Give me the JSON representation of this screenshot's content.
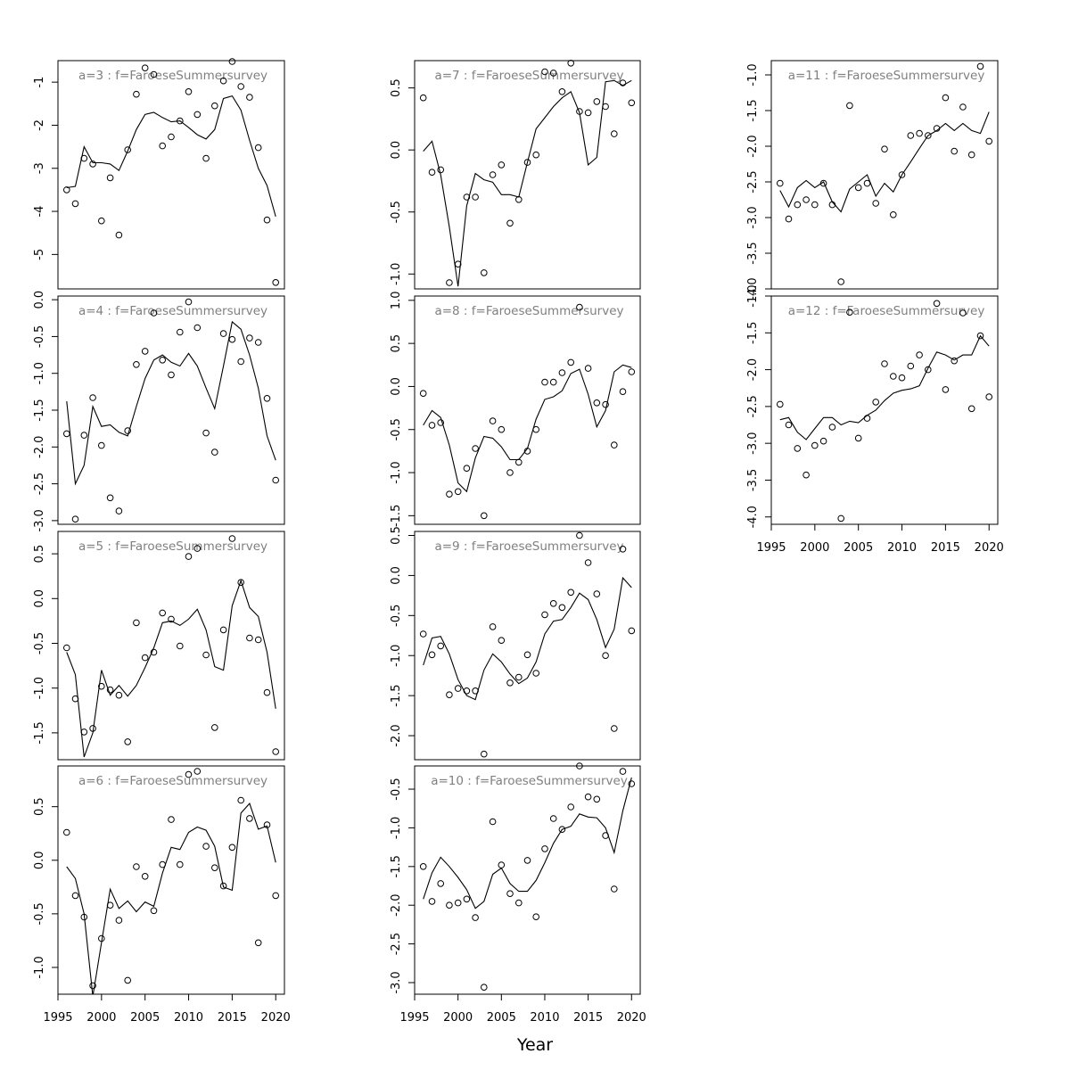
{
  "figure": {
    "xlabel": "Year",
    "point_color": "#000000",
    "line_color": "#000000",
    "title_color": "#808080"
  },
  "chart_data": [
    {
      "type": "scatter",
      "title": "a=3  :  f=FaroeseSummersurvey",
      "xlim": [
        1995,
        2021
      ],
      "ylim": [
        -5.8,
        -0.5
      ],
      "yticks": [
        -5,
        -4,
        -3,
        -2,
        -1
      ],
      "xticks": [
        1995,
        2000,
        2005,
        2010,
        2015,
        2020
      ],
      "x": [
        1996,
        1997,
        1998,
        1999,
        2000,
        2001,
        2002,
        2003,
        2004,
        2005,
        2006,
        2007,
        2008,
        2009,
        2010,
        2011,
        2012,
        2013,
        2014,
        2015,
        2016,
        2017,
        2018,
        2019,
        2020
      ],
      "observed": [
        -3.5,
        -3.82,
        -2.77,
        -2.9,
        -4.22,
        -3.22,
        -4.55,
        -2.57,
        -1.28,
        -0.67,
        -0.82,
        -2.48,
        -2.27,
        -1.9,
        -1.22,
        -1.75,
        -2.77,
        -1.55,
        -0.97,
        -0.52,
        -1.1,
        -1.35,
        -2.52,
        -4.2,
        -5.65
      ],
      "fitted": [
        -3.45,
        -3.42,
        -2.5,
        -2.87,
        -2.87,
        -2.9,
        -3.05,
        -2.6,
        -2.1,
        -1.75,
        -1.7,
        -1.82,
        -1.92,
        -1.9,
        -2.05,
        -2.22,
        -2.32,
        -2.1,
        -1.38,
        -1.32,
        -1.65,
        -2.35,
        -3.0,
        -3.4,
        -4.12
      ]
    },
    {
      "type": "scatter",
      "title": "a=4  :  f=FaroeseSummersurvey",
      "xlim": [
        1995,
        2021
      ],
      "ylim": [
        -3.05,
        0.05
      ],
      "yticks": [
        -3.0,
        -2.5,
        -2.0,
        -1.5,
        -1.0,
        -0.5,
        0.0
      ],
      "xticks": [
        1995,
        2000,
        2005,
        2010,
        2015,
        2020
      ],
      "x": [
        1996,
        1997,
        1998,
        1999,
        2000,
        2001,
        2002,
        2003,
        2004,
        2005,
        2006,
        2007,
        2008,
        2009,
        2010,
        2011,
        2012,
        2013,
        2014,
        2015,
        2016,
        2017,
        2018,
        2019,
        2020
      ],
      "observed": [
        -1.82,
        -2.98,
        -1.84,
        -1.33,
        -1.98,
        -2.69,
        -2.87,
        -1.78,
        -0.88,
        -0.7,
        -0.18,
        -0.82,
        -1.02,
        -0.44,
        -0.03,
        -0.38,
        -1.81,
        -2.07,
        -0.46,
        -0.54,
        -0.84,
        -0.52,
        -0.58,
        -1.34,
        -2.45
      ],
      "fitted": [
        -1.38,
        -2.5,
        -2.25,
        -1.45,
        -1.72,
        -1.7,
        -1.8,
        -1.85,
        -1.45,
        -1.07,
        -0.82,
        -0.75,
        -0.85,
        -0.9,
        -0.73,
        -0.9,
        -1.2,
        -1.48,
        -0.9,
        -0.3,
        -0.4,
        -0.75,
        -1.2,
        -1.85,
        -2.18
      ]
    },
    {
      "type": "scatter",
      "title": "a=5  :  f=FaroeseSummersurvey",
      "xlim": [
        1995,
        2021
      ],
      "ylim": [
        -1.8,
        0.75
      ],
      "yticks": [
        -1.5,
        -1.0,
        -0.5,
        0.0,
        0.5
      ],
      "xticks": [
        1995,
        2000,
        2005,
        2010,
        2015,
        2020
      ],
      "x": [
        1996,
        1997,
        1998,
        1999,
        2000,
        2001,
        2002,
        2003,
        2004,
        2005,
        2006,
        2007,
        2008,
        2009,
        2010,
        2011,
        2012,
        2013,
        2014,
        2015,
        2016,
        2017,
        2018,
        2019,
        2020
      ],
      "observed": [
        -0.55,
        -1.12,
        -1.49,
        -1.45,
        -0.98,
        -1.02,
        -1.08,
        -1.6,
        -0.27,
        -0.66,
        -0.6,
        -0.16,
        -0.23,
        -0.53,
        0.47,
        0.56,
        -0.63,
        -1.44,
        -0.35,
        0.67,
        0.18,
        -0.44,
        -0.46,
        -1.05,
        -1.71
      ],
      "fitted": [
        -0.6,
        -0.85,
        -1.77,
        -1.5,
        -0.8,
        -1.08,
        -0.97,
        -1.09,
        -0.97,
        -0.77,
        -0.55,
        -0.27,
        -0.25,
        -0.3,
        -0.23,
        -0.12,
        -0.35,
        -0.76,
        -0.8,
        -0.08,
        0.2,
        -0.1,
        -0.2,
        -0.6,
        -1.23
      ]
    },
    {
      "type": "scatter",
      "title": "a=6  :  f=FaroeseSummersurvey",
      "xlim": [
        1995,
        2021
      ],
      "ylim": [
        -1.25,
        0.88
      ],
      "yticks": [
        -1.0,
        -0.5,
        0.0,
        0.5
      ],
      "xticks": [
        1995,
        2000,
        2005,
        2010,
        2015,
        2020
      ],
      "x": [
        1996,
        1997,
        1998,
        1999,
        2000,
        2001,
        2002,
        2003,
        2004,
        2005,
        2006,
        2007,
        2008,
        2009,
        2010,
        2011,
        2012,
        2013,
        2014,
        2015,
        2016,
        2017,
        2018,
        2019,
        2020
      ],
      "observed": [
        0.26,
        -0.33,
        -0.53,
        -1.17,
        -0.73,
        -0.42,
        -0.56,
        -1.12,
        -0.06,
        -0.15,
        -0.47,
        -0.04,
        0.38,
        -0.04,
        0.8,
        0.83,
        0.13,
        -0.07,
        -0.24,
        0.12,
        0.56,
        0.39,
        -0.77,
        0.33,
        -0.33
      ],
      "fitted": [
        -0.06,
        -0.17,
        -0.5,
        -1.27,
        -0.77,
        -0.27,
        -0.45,
        -0.38,
        -0.48,
        -0.39,
        -0.43,
        -0.12,
        0.12,
        0.1,
        0.26,
        0.31,
        0.28,
        0.13,
        -0.25,
        -0.28,
        0.44,
        0.53,
        0.29,
        0.32,
        -0.02
      ]
    },
    {
      "type": "scatter",
      "title": "a=7  :  f=FaroeseSummersurvey",
      "xlim": [
        1995,
        2021
      ],
      "ylim": [
        -1.12,
        0.72
      ],
      "yticks": [
        -1.0,
        -0.5,
        0.0,
        0.5
      ],
      "xticks": [
        1995,
        2000,
        2005,
        2010,
        2015,
        2020
      ],
      "x": [
        1996,
        1997,
        1998,
        1999,
        2000,
        2001,
        2002,
        2003,
        2004,
        2005,
        2006,
        2007,
        2008,
        2009,
        2010,
        2011,
        2012,
        2013,
        2014,
        2015,
        2016,
        2017,
        2018,
        2019,
        2020
      ],
      "observed": [
        0.42,
        -0.18,
        -0.16,
        -1.07,
        -0.92,
        -0.38,
        -0.38,
        -0.99,
        -0.2,
        -0.12,
        -0.59,
        -0.4,
        -0.1,
        -0.04,
        0.63,
        0.62,
        0.47,
        0.7,
        0.31,
        0.3,
        0.39,
        0.35,
        0.13,
        0.54,
        0.38
      ],
      "fitted": [
        -0.01,
        0.07,
        -0.2,
        -0.62,
        -1.1,
        -0.45,
        -0.19,
        -0.24,
        -0.26,
        -0.36,
        -0.36,
        -0.38,
        -0.1,
        0.17,
        0.26,
        0.35,
        0.42,
        0.47,
        0.3,
        -0.12,
        -0.06,
        0.55,
        0.56,
        0.52,
        0.56
      ]
    },
    {
      "type": "scatter",
      "title": "a=8  :  f=FaroeseSummersurvey",
      "xlim": [
        1995,
        2021
      ],
      "ylim": [
        -1.6,
        1.05
      ],
      "yticks": [
        -1.5,
        -1.0,
        -0.5,
        0.0,
        0.5,
        1.0
      ],
      "xticks": [
        1995,
        2000,
        2005,
        2010,
        2015,
        2020
      ],
      "x": [
        1996,
        1997,
        1998,
        1999,
        2000,
        2001,
        2002,
        2003,
        2004,
        2005,
        2006,
        2007,
        2008,
        2009,
        2010,
        2011,
        2012,
        2013,
        2014,
        2015,
        2016,
        2017,
        2018,
        2019,
        2020
      ],
      "observed": [
        -0.08,
        -0.45,
        -0.42,
        -1.25,
        -1.22,
        -0.95,
        -0.72,
        -1.5,
        -0.4,
        -0.5,
        -1.0,
        -0.88,
        -0.75,
        -0.5,
        0.05,
        0.05,
        0.16,
        0.28,
        0.92,
        0.21,
        -0.19,
        -0.21,
        -0.68,
        -0.06,
        0.17
      ],
      "fitted": [
        -0.45,
        -0.28,
        -0.36,
        -0.68,
        -1.12,
        -1.22,
        -0.83,
        -0.58,
        -0.6,
        -0.7,
        -0.85,
        -0.85,
        -0.72,
        -0.38,
        -0.15,
        -0.12,
        -0.05,
        0.15,
        0.2,
        -0.09,
        -0.47,
        -0.28,
        0.17,
        0.25,
        0.22
      ]
    },
    {
      "type": "scatter",
      "title": "a=9  :  f=FaroeseSummersurvey",
      "xlim": [
        1995,
        2021
      ],
      "ylim": [
        -2.3,
        0.55
      ],
      "yticks": [
        -2.0,
        -1.5,
        -1.0,
        -0.5,
        0.0,
        0.5
      ],
      "xticks": [
        1995,
        2000,
        2005,
        2010,
        2015,
        2020
      ],
      "x": [
        1996,
        1997,
        1998,
        1999,
        2000,
        2001,
        2002,
        2003,
        2004,
        2005,
        2006,
        2007,
        2008,
        2009,
        2010,
        2011,
        2012,
        2013,
        2014,
        2015,
        2016,
        2017,
        2018,
        2019,
        2020
      ],
      "observed": [
        -0.73,
        -0.99,
        -0.88,
        -1.49,
        -1.41,
        -1.44,
        -1.44,
        -2.23,
        -0.64,
        -0.81,
        -1.34,
        -1.27,
        -0.99,
        -1.22,
        -0.49,
        -0.35,
        -0.4,
        -0.21,
        0.5,
        0.16,
        -0.23,
        -1.0,
        -1.91,
        0.33,
        -0.69
      ],
      "fitted": [
        -1.12,
        -0.78,
        -0.76,
        -0.98,
        -1.3,
        -1.5,
        -1.55,
        -1.18,
        -0.98,
        -1.08,
        -1.23,
        -1.35,
        -1.28,
        -1.08,
        -0.73,
        -0.57,
        -0.55,
        -0.4,
        -0.22,
        -0.3,
        -0.55,
        -0.9,
        -0.67,
        -0.03,
        -0.15
      ]
    },
    {
      "type": "scatter",
      "title": "a=10  :  f=FaroeseSummersurvey",
      "xlim": [
        1995,
        2021
      ],
      "ylim": [
        -3.15,
        -0.2
      ],
      "yticks": [
        -3.0,
        -2.5,
        -2.0,
        -1.5,
        -1.0,
        -0.5
      ],
      "xticks": [
        1995,
        2000,
        2005,
        2010,
        2015,
        2020
      ],
      "x": [
        1996,
        1997,
        1998,
        1999,
        2000,
        2001,
        2002,
        2003,
        2004,
        2005,
        2006,
        2007,
        2008,
        2009,
        2010,
        2011,
        2012,
        2013,
        2014,
        2015,
        2016,
        2017,
        2018,
        2019,
        2020
      ],
      "observed": [
        -1.5,
        -1.95,
        -1.72,
        -2.0,
        -1.97,
        -1.92,
        -2.16,
        -3.06,
        -0.92,
        -1.48,
        -1.85,
        -1.97,
        -1.42,
        -2.15,
        -1.27,
        -0.88,
        -1.02,
        -0.73,
        -0.2,
        -0.6,
        -0.63,
        -1.1,
        -1.79,
        -0.27,
        -0.43
      ],
      "fitted": [
        -1.92,
        -1.58,
        -1.38,
        -1.5,
        -1.64,
        -1.8,
        -2.04,
        -1.95,
        -1.6,
        -1.52,
        -1.72,
        -1.82,
        -1.82,
        -1.68,
        -1.45,
        -1.2,
        -1.02,
        -0.98,
        -0.82,
        -0.86,
        -0.87,
        -1.0,
        -1.32,
        -0.78,
        -0.35
      ]
    },
    {
      "type": "scatter",
      "title": "a=11  :  f=FaroeseSummersurvey",
      "xlim": [
        1995,
        2021
      ],
      "ylim": [
        -4.0,
        -0.8
      ],
      "yticks": [
        -4.0,
        -3.5,
        -3.0,
        -2.5,
        -2.0,
        -1.5,
        -1.0
      ],
      "xticks": [
        1995,
        2000,
        2005,
        2010,
        2015,
        2020
      ],
      "x": [
        1996,
        1997,
        1998,
        1999,
        2000,
        2001,
        2002,
        2003,
        2004,
        2005,
        2006,
        2007,
        2008,
        2009,
        2010,
        2011,
        2012,
        2013,
        2014,
        2015,
        2016,
        2017,
        2018,
        2019,
        2020
      ],
      "observed": [
        -2.52,
        -3.02,
        -2.82,
        -2.75,
        -2.82,
        -2.52,
        -2.82,
        -3.9,
        -1.43,
        -2.58,
        -2.52,
        -2.8,
        -2.04,
        -2.96,
        -2.4,
        -1.85,
        -1.82,
        -1.85,
        -1.75,
        -1.32,
        -2.07,
        -1.45,
        -2.12,
        -0.88,
        -1.93
      ],
      "fitted": [
        -2.62,
        -2.85,
        -2.58,
        -2.48,
        -2.58,
        -2.5,
        -2.78,
        -2.92,
        -2.6,
        -2.5,
        -2.4,
        -2.7,
        -2.52,
        -2.64,
        -2.4,
        -2.22,
        -2.03,
        -1.85,
        -1.78,
        -1.68,
        -1.78,
        -1.68,
        -1.78,
        -1.82,
        -1.52
      ]
    },
    {
      "type": "scatter",
      "title": "a=12  :  f=FaroeseSummersurvey",
      "xlim": [
        1995,
        2021
      ],
      "ylim": [
        -4.1,
        -1.0
      ],
      "yticks": [
        -4.0,
        -3.5,
        -3.0,
        -2.5,
        -2.0,
        -1.5,
        -1.0
      ],
      "xticks": [
        1995,
        2000,
        2005,
        2010,
        2015,
        2020
      ],
      "x": [
        1996,
        1997,
        1998,
        1999,
        2000,
        2001,
        2002,
        2003,
        2004,
        2005,
        2006,
        2007,
        2008,
        2009,
        2010,
        2011,
        2012,
        2013,
        2014,
        2015,
        2016,
        2017,
        2018,
        2019,
        2020
      ],
      "observed": [
        -2.47,
        -2.75,
        -3.07,
        -3.43,
        -3.03,
        -2.97,
        -2.78,
        -4.02,
        -1.22,
        -2.93,
        -2.66,
        -2.44,
        -1.92,
        -2.09,
        -2.11,
        -1.95,
        -1.8,
        -2.0,
        -1.1,
        -2.27,
        -1.88,
        -1.23,
        -2.53,
        -1.54,
        -2.37
      ],
      "fitted": [
        -2.68,
        -2.65,
        -2.85,
        -2.95,
        -2.8,
        -2.65,
        -2.65,
        -2.75,
        -2.7,
        -2.72,
        -2.62,
        -2.55,
        -2.42,
        -2.32,
        -2.28,
        -2.26,
        -2.22,
        -1.98,
        -1.76,
        -1.8,
        -1.87,
        -1.8,
        -1.8,
        -1.54,
        -1.68
      ]
    }
  ]
}
